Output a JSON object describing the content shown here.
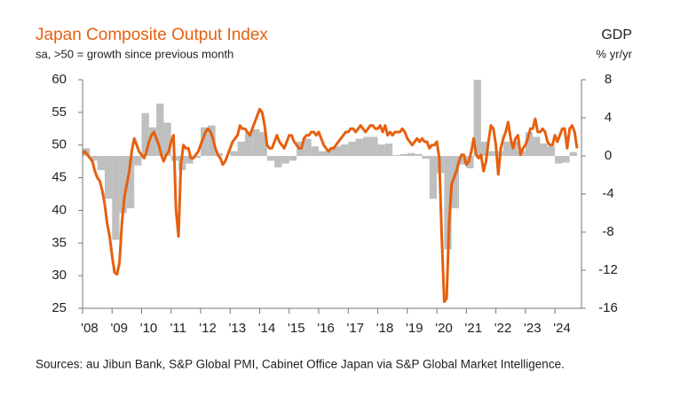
{
  "chart_data": {
    "type": "combo",
    "title": "Japan Composite Output Index",
    "subtitle": "sa, >50 = growth since previous month",
    "y2_title": "GDP",
    "y2_unit": "% yr/yr",
    "source": "Sources: au Jibun Bank, S&P Global PMI, Cabinet Office Japan via S&P Global Market Intelligence.",
    "xlim": [
      2008,
      2024.9
    ],
    "xticks": [
      {
        "value": 2008,
        "label": "'08"
      },
      {
        "value": 2009,
        "label": "'09"
      },
      {
        "value": 2010,
        "label": "'10"
      },
      {
        "value": 2011,
        "label": "'11"
      },
      {
        "value": 2012,
        "label": "'12"
      },
      {
        "value": 2013,
        "label": "'13"
      },
      {
        "value": 2014,
        "label": "'14"
      },
      {
        "value": 2015,
        "label": "'15"
      },
      {
        "value": 2016,
        "label": "'16"
      },
      {
        "value": 2017,
        "label": "'17"
      },
      {
        "value": 2018,
        "label": "'18"
      },
      {
        "value": 2019,
        "label": "'19"
      },
      {
        "value": 2020,
        "label": "'20"
      },
      {
        "value": 2021,
        "label": "'21"
      },
      {
        "value": 2022,
        "label": "'22"
      },
      {
        "value": 2023,
        "label": "'23"
      },
      {
        "value": 2024,
        "label": "'24"
      }
    ],
    "ylim": [
      25,
      60
    ],
    "yticks": [
      25,
      30,
      35,
      40,
      45,
      50,
      55,
      60
    ],
    "y2lim": [
      -16,
      8
    ],
    "y2ticks": [
      -16,
      -12,
      -8,
      -4,
      0,
      4,
      8
    ],
    "series": [
      {
        "type": "bar",
        "axis": "y2",
        "color": "#bfbfbf",
        "x": [
          2008,
          2008.25,
          2008.5,
          2008.75,
          2009,
          2009.25,
          2009.5,
          2009.75,
          2010,
          2010.25,
          2010.5,
          2010.75,
          2011,
          2011.25,
          2011.5,
          2011.75,
          2012,
          2012.25,
          2012.5,
          2012.75,
          2013,
          2013.25,
          2013.5,
          2013.75,
          2014,
          2014.25,
          2014.5,
          2014.75,
          2015,
          2015.25,
          2015.5,
          2015.75,
          2016,
          2016.25,
          2016.5,
          2016.75,
          2017,
          2017.25,
          2017.5,
          2017.75,
          2018,
          2018.25,
          2018.5,
          2018.75,
          2019,
          2019.25,
          2019.5,
          2019.75,
          2020,
          2020.25,
          2020.5,
          2020.75,
          2021,
          2021.25,
          2021.5,
          2021.75,
          2022,
          2022.25,
          2022.5,
          2022.75,
          2023,
          2023.25,
          2023.5,
          2023.75,
          2024,
          2024.25,
          2024.5
        ],
        "values": [
          0.8,
          -0.5,
          -1.5,
          -4.5,
          -8.8,
          -6.0,
          -5.5,
          -1.0,
          4.5,
          3.0,
          5.5,
          3.5,
          -0.5,
          -1.5,
          -0.8,
          -0.2,
          3.0,
          3.2,
          0.3,
          0.0,
          0.5,
          1.5,
          2.5,
          2.8,
          2.5,
          -0.5,
          -1.2,
          -0.8,
          -0.5,
          1.5,
          1.8,
          1.0,
          0.5,
          0.7,
          1.0,
          1.2,
          1.5,
          1.8,
          2.0,
          2.0,
          1.2,
          1.3,
          0.1,
          0.2,
          0.3,
          0.2,
          -0.3,
          -4.5,
          -1.8,
          -9.8,
          -5.5,
          -0.9,
          -1.3,
          8.0,
          1.5,
          0.5,
          0.5,
          1.5,
          1.5,
          0.5,
          2.5,
          2.0,
          1.3,
          1.0,
          -0.8,
          -0.7,
          0.4
        ]
      },
      {
        "type": "line",
        "axis": "y",
        "color": "#e5600f",
        "x": [
          2008,
          2008.083,
          2008.167,
          2008.25,
          2008.333,
          2008.417,
          2008.5,
          2008.583,
          2008.667,
          2008.75,
          2008.833,
          2008.917,
          2009,
          2009.083,
          2009.167,
          2009.25,
          2009.333,
          2009.417,
          2009.5,
          2009.583,
          2009.667,
          2009.75,
          2009.833,
          2009.917,
          2010,
          2010.083,
          2010.167,
          2010.25,
          2010.333,
          2010.417,
          2010.5,
          2010.583,
          2010.667,
          2010.75,
          2010.833,
          2010.917,
          2011,
          2011.083,
          2011.167,
          2011.25,
          2011.333,
          2011.417,
          2011.5,
          2011.583,
          2011.667,
          2011.75,
          2011.833,
          2011.917,
          2012,
          2012.083,
          2012.167,
          2012.25,
          2012.333,
          2012.417,
          2012.5,
          2012.583,
          2012.667,
          2012.75,
          2012.833,
          2012.917,
          2013,
          2013.083,
          2013.167,
          2013.25,
          2013.333,
          2013.417,
          2013.5,
          2013.583,
          2013.667,
          2013.75,
          2013.833,
          2013.917,
          2014,
          2014.083,
          2014.167,
          2014.25,
          2014.333,
          2014.417,
          2014.5,
          2014.583,
          2014.667,
          2014.75,
          2014.833,
          2014.917,
          2015,
          2015.083,
          2015.167,
          2015.25,
          2015.333,
          2015.417,
          2015.5,
          2015.583,
          2015.667,
          2015.75,
          2015.833,
          2015.917,
          2016,
          2016.083,
          2016.167,
          2016.25,
          2016.333,
          2016.417,
          2016.5,
          2016.583,
          2016.667,
          2016.75,
          2016.833,
          2016.917,
          2017,
          2017.083,
          2017.167,
          2017.25,
          2017.333,
          2017.417,
          2017.5,
          2017.583,
          2017.667,
          2017.75,
          2017.833,
          2017.917,
          2018,
          2018.083,
          2018.167,
          2018.25,
          2018.333,
          2018.417,
          2018.5,
          2018.583,
          2018.667,
          2018.75,
          2018.833,
          2018.917,
          2019,
          2019.083,
          2019.167,
          2019.25,
          2019.333,
          2019.417,
          2019.5,
          2019.583,
          2019.667,
          2019.75,
          2019.833,
          2019.917,
          2020,
          2020.083,
          2020.167,
          2020.25,
          2020.333,
          2020.417,
          2020.5,
          2020.583,
          2020.667,
          2020.75,
          2020.833,
          2020.917,
          2021,
          2021.083,
          2021.167,
          2021.25,
          2021.333,
          2021.417,
          2021.5,
          2021.583,
          2021.667,
          2021.75,
          2021.833,
          2021.917,
          2022,
          2022.083,
          2022.167,
          2022.25,
          2022.333,
          2022.417,
          2022.5,
          2022.583,
          2022.667,
          2022.75,
          2022.833,
          2022.917,
          2023,
          2023.083,
          2023.167,
          2023.25,
          2023.333,
          2023.417,
          2023.5,
          2023.583,
          2023.667,
          2023.75,
          2023.833,
          2023.917,
          2024,
          2024.083,
          2024.167,
          2024.25,
          2024.333,
          2024.417,
          2024.5,
          2024.583,
          2024.667,
          2024.75
        ],
        "values": [
          48.7,
          49,
          48.5,
          48,
          47.5,
          46,
          45,
          44.5,
          43,
          41,
          38,
          36,
          33,
          30.5,
          30.2,
          32,
          38,
          42,
          44,
          46,
          49,
          51,
          50,
          49,
          48.5,
          48,
          49,
          50.5,
          51.5,
          52,
          51,
          50,
          48.5,
          47.5,
          48.5,
          49,
          50.5,
          51.5,
          40,
          36,
          47,
          50,
          49.5,
          49.5,
          48,
          48,
          48.5,
          49,
          50,
          51,
          52,
          52.5,
          52,
          51,
          49.5,
          48.5,
          48,
          47,
          47.5,
          48.5,
          49.5,
          50.5,
          51,
          51.5,
          53,
          52.5,
          52.5,
          52,
          51.5,
          52.5,
          53.5,
          54.5,
          55.5,
          55,
          53,
          50,
          49.5,
          49.5,
          50.5,
          51.5,
          50.5,
          50,
          49.5,
          50.5,
          51.5,
          51.5,
          50.5,
          50,
          49.5,
          49.5,
          51,
          51.5,
          51.5,
          52,
          52,
          51.5,
          52,
          51,
          50,
          49.5,
          49,
          49.5,
          49.5,
          50,
          50.5,
          51,
          51.5,
          52,
          52,
          52.5,
          52.5,
          52,
          52.5,
          53,
          52.5,
          52,
          52.5,
          53,
          53,
          52.5,
          52.5,
          53,
          52,
          53,
          51.5,
          52,
          51.5,
          52,
          52,
          52,
          52.5,
          52,
          51,
          50.5,
          50,
          50.5,
          51,
          50.5,
          51,
          50.5,
          50.5,
          49.5,
          50,
          50,
          50.5,
          48,
          36,
          26,
          26.5,
          38,
          44,
          45,
          46,
          47.5,
          48.5,
          48.5,
          47,
          47.5,
          49,
          51,
          48.5,
          48,
          48.5,
          46,
          47.5,
          50.5,
          53,
          52.5,
          50,
          45.5,
          49.5,
          51,
          52,
          53.5,
          51,
          49.5,
          51,
          51.5,
          48.5,
          49.5,
          50,
          51,
          52.5,
          52.5,
          54,
          52,
          52,
          52.5,
          52,
          50.5,
          50,
          50,
          51.5,
          50.5,
          51.5,
          52.5,
          52.5,
          49.5,
          52.5,
          53,
          52,
          49.5
        ]
      }
    ]
  }
}
